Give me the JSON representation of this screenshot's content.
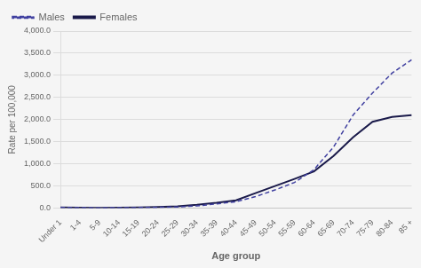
{
  "chart_data": {
    "type": "line",
    "xlabel": "Age group",
    "ylabel": "Rate per 100,000",
    "categories": [
      "Under 1",
      "1-4",
      "5-9",
      "10-14",
      "15-19",
      "20-24",
      "25-29",
      "30-34",
      "35-39",
      "40-44",
      "45-49",
      "50-54",
      "55-59",
      "60-64",
      "65-69",
      "70-74",
      "75-79",
      "80-84",
      "85 +"
    ],
    "series": [
      {
        "name": "Males",
        "color": "#4040A0",
        "line_style": "dashed",
        "values": [
          18,
          9,
          7,
          9,
          13,
          18,
          28,
          50,
          95,
          145,
          260,
          410,
          580,
          870,
          1380,
          2100,
          2600,
          3050,
          3350
        ]
      },
      {
        "name": "Females",
        "color": "#1A1A4A",
        "line_style": "solid",
        "values": [
          16,
          9,
          7,
          9,
          16,
          26,
          42,
          75,
          120,
          175,
          340,
          500,
          660,
          830,
          1180,
          1600,
          1950,
          2060,
          2100
        ]
      }
    ],
    "ylim": [
      0,
      4000
    ],
    "yticks": [
      {
        "value": 0,
        "label": "0.0"
      },
      {
        "value": 500,
        "label": "500.0"
      },
      {
        "value": 1000,
        "label": "1,000.0"
      },
      {
        "value": 1500,
        "label": "1,500.0"
      },
      {
        "value": 2000,
        "label": "2,000.0"
      },
      {
        "value": 2500,
        "label": "2,500.0"
      },
      {
        "value": 3000,
        "label": "3,000.0"
      },
      {
        "value": 3500,
        "label": "3,500.0"
      },
      {
        "value": 4000,
        "label": "4,000.0"
      }
    ],
    "grid": "y",
    "legend": "upper left"
  }
}
